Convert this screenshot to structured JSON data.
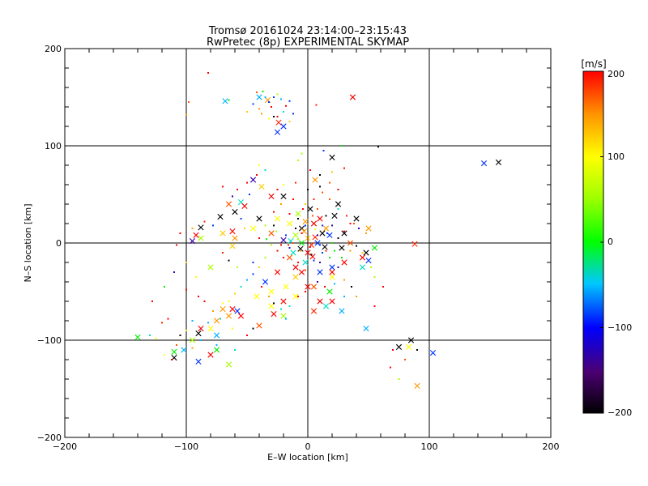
{
  "chart_data": {
    "type": "scatter",
    "title": "Tromsø 20161024 23:14:00–23:15:43",
    "subtitle": "RwPretec (8p) EXPERIMENTAL SKYMAP",
    "xlabel": "E–W location [km]",
    "ylabel": "N–S location [km]",
    "xlim": [
      -200,
      200
    ],
    "ylim": [
      -200,
      200
    ],
    "xticks": [
      "−200",
      "−100",
      "0",
      "100",
      "200"
    ],
    "yticks": [
      "−200",
      "−100",
      "0",
      "100",
      "200"
    ],
    "grid_lines": [
      -100,
      0,
      100
    ],
    "colorbar": {
      "label": "[m/s]",
      "range": [
        -200,
        200
      ],
      "ticks": [
        "−200",
        "−100",
        "0",
        "100",
        "200"
      ]
    },
    "series": [
      {
        "name": "cross-markers",
        "marker": "x",
        "points": [
          [
            -40,
            150
          ],
          [
            -33,
            147
          ],
          [
            -68,
            146
          ],
          [
            -24,
            124
          ],
          [
            -25,
            114
          ],
          [
            -20,
            120
          ],
          [
            37,
            150
          ],
          [
            157,
            83
          ],
          [
            145,
            82
          ],
          [
            20,
            88
          ],
          [
            -45,
            65
          ],
          [
            -38,
            58
          ],
          [
            -20,
            48
          ],
          [
            -30,
            48
          ],
          [
            -55,
            42
          ],
          [
            -65,
            40
          ],
          [
            -52,
            38
          ],
          [
            -60,
            32
          ],
          [
            -72,
            27
          ],
          [
            -88,
            16
          ],
          [
            -92,
            8
          ],
          [
            -88,
            5
          ],
          [
            -95,
            2
          ],
          [
            -70,
            10
          ],
          [
            -60,
            5
          ],
          [
            -62,
            -3
          ],
          [
            -62,
            12
          ],
          [
            -40,
            25
          ],
          [
            -25,
            25
          ],
          [
            -15,
            20
          ],
          [
            -5,
            15
          ],
          [
            5,
            20
          ],
          [
            10,
            25
          ],
          [
            15,
            15
          ],
          [
            0,
            5
          ],
          [
            -5,
            0
          ],
          [
            3,
            -2
          ],
          [
            -10,
            8
          ],
          [
            -20,
            3
          ],
          [
            -30,
            10
          ],
          [
            -45,
            15
          ],
          [
            25,
            40
          ],
          [
            40,
            25
          ],
          [
            50,
            15
          ],
          [
            55,
            -5
          ],
          [
            48,
            -10
          ],
          [
            50,
            -18
          ],
          [
            45,
            -15
          ],
          [
            45,
            -25
          ],
          [
            30,
            -20
          ],
          [
            20,
            -25
          ],
          [
            20,
            -35
          ],
          [
            10,
            -30
          ],
          [
            5,
            -45
          ],
          [
            -10,
            -35
          ],
          [
            -18,
            -45
          ],
          [
            -10,
            -55
          ],
          [
            -20,
            -60
          ],
          [
            -30,
            -65
          ],
          [
            -28,
            -73
          ],
          [
            -40,
            -85
          ],
          [
            -55,
            -75
          ],
          [
            -58,
            -70
          ],
          [
            -62,
            -68
          ],
          [
            -65,
            -75
          ],
          [
            -75,
            -80
          ],
          [
            -80,
            -88
          ],
          [
            -88,
            -88
          ],
          [
            -90,
            -93
          ],
          [
            -95,
            -100
          ],
          [
            -110,
            -112
          ],
          [
            -110,
            -118
          ],
          [
            -102,
            -110
          ],
          [
            -90,
            -122
          ],
          [
            -80,
            -115
          ],
          [
            -75,
            -110
          ],
          [
            -65,
            -125
          ],
          [
            -140,
            -97
          ],
          [
            -75,
            -95
          ],
          [
            -70,
            -68
          ],
          [
            -20,
            -75
          ],
          [
            5,
            -70
          ],
          [
            10,
            -60
          ],
          [
            18,
            -50
          ],
          [
            20,
            -30
          ],
          [
            15,
            -65
          ],
          [
            20,
            -60
          ],
          [
            28,
            -70
          ],
          [
            48,
            -88
          ],
          [
            83,
            -107
          ],
          [
            75,
            -107
          ],
          [
            103,
            -113
          ],
          [
            90,
            -147
          ],
          [
            85,
            -100
          ],
          [
            88,
            -1
          ],
          [
            -80,
            -25
          ],
          [
            -10,
            -25
          ],
          [
            -2,
            -20
          ],
          [
            8,
            0
          ],
          [
            12,
            10
          ],
          [
            -12,
            -10
          ],
          [
            -35,
            -40
          ],
          [
            -25,
            -30
          ],
          [
            0,
            -45
          ],
          [
            -5,
            -30
          ],
          [
            -15,
            -15
          ],
          [
            -8,
            30
          ],
          [
            2,
            35
          ],
          [
            6,
            65
          ],
          [
            30,
            10
          ],
          [
            35,
            0
          ],
          [
            28,
            -5
          ],
          [
            -42,
            -55
          ],
          [
            -30,
            -50
          ],
          [
            0,
            -10
          ],
          [
            -3,
            12
          ],
          [
            18,
            8
          ],
          [
            22,
            28
          ],
          [
            -6,
            -6
          ],
          [
            6,
            6
          ],
          [
            -14,
            2
          ],
          [
            14,
            -4
          ],
          [
            -2,
            22
          ],
          [
            4,
            -14
          ]
        ]
      },
      {
        "name": "dot-markers",
        "marker": "dot",
        "points": [
          [
            -42,
            155
          ],
          [
            -37,
            156
          ],
          [
            -35,
            150
          ],
          [
            -32,
            145
          ],
          [
            -28,
            150
          ],
          [
            -25,
            153
          ],
          [
            -22,
            148
          ],
          [
            -18,
            141
          ],
          [
            -15,
            146
          ],
          [
            -30,
            140
          ],
          [
            -20,
            135
          ],
          [
            -25,
            130
          ],
          [
            -12,
            133
          ],
          [
            -32,
            128
          ],
          [
            -40,
            138
          ],
          [
            -45,
            143
          ],
          [
            -50,
            135
          ],
          [
            -15,
            125
          ],
          [
            -98,
            145
          ],
          [
            -100,
            132
          ],
          [
            -82,
            175
          ],
          [
            -65,
            147
          ],
          [
            7,
            142
          ],
          [
            13,
            95
          ],
          [
            28,
            100
          ],
          [
            58,
            99
          ],
          [
            -28,
            130
          ],
          [
            -38,
            133
          ],
          [
            -5,
            92
          ],
          [
            -8,
            85
          ],
          [
            2,
            75
          ],
          [
            10,
            70
          ],
          [
            20,
            73
          ],
          [
            30,
            77
          ],
          [
            -35,
            75
          ],
          [
            -40,
            80
          ],
          [
            -42,
            70
          ],
          [
            -50,
            62
          ],
          [
            -58,
            55
          ],
          [
            -70,
            58
          ],
          [
            -62,
            48
          ],
          [
            -48,
            50
          ],
          [
            -55,
            25
          ],
          [
            -52,
            15
          ],
          [
            -40,
            5
          ],
          [
            -35,
            18
          ],
          [
            -28,
            32
          ],
          [
            -22,
            40
          ],
          [
            -15,
            30
          ],
          [
            -8,
            25
          ],
          [
            -2,
            40
          ],
          [
            5,
            45
          ],
          [
            12,
            52
          ],
          [
            18,
            45
          ],
          [
            25,
            35
          ],
          [
            32,
            28
          ],
          [
            38,
            20
          ],
          [
            42,
            15
          ],
          [
            48,
            10
          ],
          [
            40,
            -3
          ],
          [
            35,
            -8
          ],
          [
            28,
            -15
          ],
          [
            25,
            -25
          ],
          [
            18,
            -15
          ],
          [
            12,
            -10
          ],
          [
            5,
            -18
          ],
          [
            -2,
            -28
          ],
          [
            -8,
            -20
          ],
          [
            -15,
            -5
          ],
          [
            -20,
            -15
          ],
          [
            -25,
            -8
          ],
          [
            -30,
            -2
          ],
          [
            -35,
            -15
          ],
          [
            -40,
            -25
          ],
          [
            -45,
            -32
          ],
          [
            -50,
            -38
          ],
          [
            -55,
            -45
          ],
          [
            -60,
            -52
          ],
          [
            -65,
            -60
          ],
          [
            -70,
            -62
          ],
          [
            -72,
            -78
          ],
          [
            -78,
            -70
          ],
          [
            -85,
            -60
          ],
          [
            -90,
            -55
          ],
          [
            -95,
            -80
          ],
          [
            -100,
            -90
          ],
          [
            -105,
            -95
          ],
          [
            -108,
            -105
          ],
          [
            -112,
            -120
          ],
          [
            -118,
            -115
          ],
          [
            -125,
            -98
          ],
          [
            -128,
            -60
          ],
          [
            -120,
            -82
          ],
          [
            -100,
            -48
          ],
          [
            -92,
            -35
          ],
          [
            -100,
            -20
          ],
          [
            -108,
            -2
          ],
          [
            -105,
            10
          ],
          [
            -95,
            15
          ],
          [
            -85,
            22
          ],
          [
            -78,
            18
          ],
          [
            -70,
            -10
          ],
          [
            -65,
            -18
          ],
          [
            -58,
            -25
          ],
          [
            -45,
            -20
          ],
          [
            -38,
            -45
          ],
          [
            -32,
            -55
          ],
          [
            -28,
            -62
          ],
          [
            -22,
            -68
          ],
          [
            -18,
            -78
          ],
          [
            -15,
            -65
          ],
          [
            -8,
            -55
          ],
          [
            -2,
            -50
          ],
          [
            8,
            -40
          ],
          [
            14,
            -45
          ],
          [
            22,
            -42
          ],
          [
            30,
            -38
          ],
          [
            36,
            -45
          ],
          [
            10,
            -20
          ],
          [
            15,
            -8
          ],
          [
            20,
            0
          ],
          [
            25,
            5
          ],
          [
            30,
            12
          ],
          [
            35,
            20
          ],
          [
            0,
            5
          ],
          [
            -5,
            10
          ],
          [
            -10,
            15
          ],
          [
            -12,
            0
          ],
          [
            -6,
            -8
          ],
          [
            3,
            -12
          ],
          [
            8,
            8
          ],
          [
            12,
            18
          ],
          [
            -18,
            8
          ],
          [
            -22,
            -2
          ],
          [
            -28,
            18
          ],
          [
            15,
            28
          ],
          [
            20,
            18
          ],
          [
            4,
            28
          ],
          [
            -4,
            35
          ],
          [
            -12,
            45
          ],
          [
            8,
            35
          ],
          [
            45,
            -10
          ],
          [
            52,
            -25
          ],
          [
            55,
            -35
          ],
          [
            62,
            -45
          ],
          [
            40,
            -55
          ],
          [
            30,
            -55
          ],
          [
            55,
            -65
          ],
          [
            70,
            -110
          ],
          [
            68,
            -128
          ],
          [
            80,
            -120
          ],
          [
            90,
            -110
          ],
          [
            75,
            -140
          ],
          [
            -75,
            -105
          ],
          [
            -60,
            -110
          ],
          [
            -50,
            -95
          ],
          [
            -45,
            -88
          ],
          [
            -62,
            -88
          ],
          [
            -82,
            -82
          ],
          [
            -88,
            -100
          ],
          [
            -95,
            -108
          ],
          [
            -115,
            -78
          ],
          [
            -130,
            -95
          ],
          [
            -118,
            -45
          ],
          [
            -110,
            -30
          ],
          [
            -20,
            60
          ],
          [
            -25,
            55
          ],
          [
            -10,
            62
          ],
          [
            0,
            55
          ],
          [
            10,
            58
          ],
          [
            18,
            62
          ],
          [
            25,
            55
          ],
          [
            -2,
            18
          ],
          [
            2,
            -4
          ],
          [
            6,
            14
          ],
          [
            -8,
            4
          ],
          [
            -16,
            -2
          ],
          [
            10,
            -2
          ],
          [
            -26,
            12
          ],
          [
            16,
            10
          ],
          [
            -34,
            4
          ],
          [
            22,
            -8
          ]
        ]
      }
    ]
  }
}
